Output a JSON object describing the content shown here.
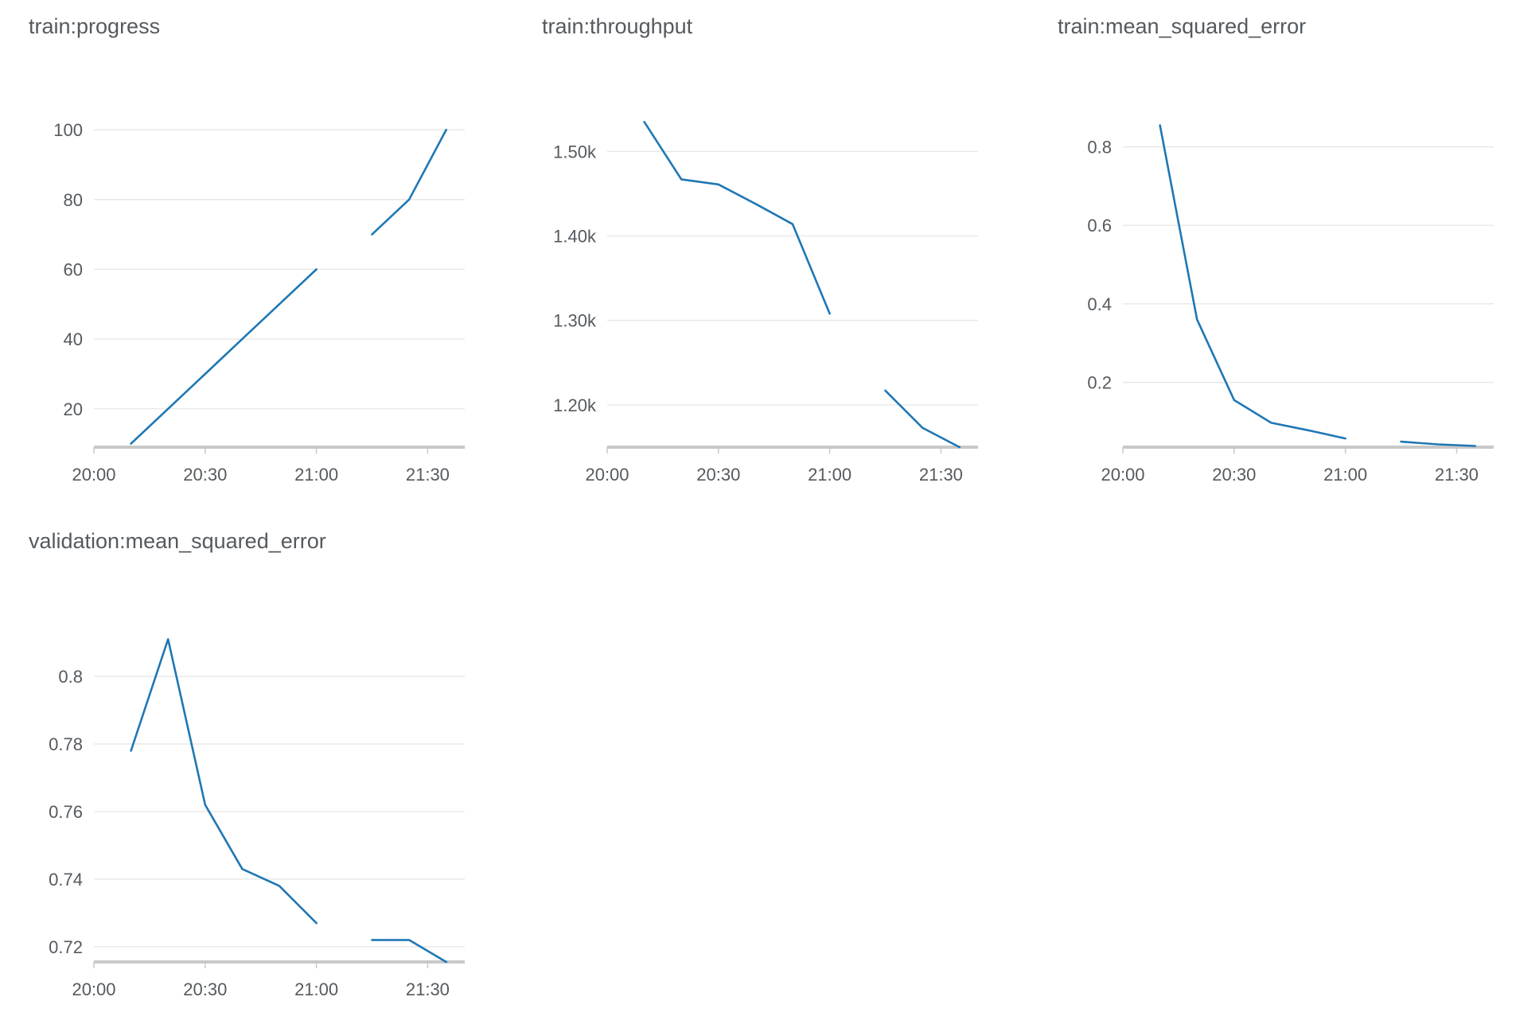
{
  "palette": {
    "series": "#1f77b4"
  },
  "chart_data": [
    {
      "type": "line",
      "title": "train:progress",
      "x_ticks": [
        "20:00",
        "20:30",
        "21:00",
        "21:30"
      ],
      "xlim": [
        "20:00",
        "21:40"
      ],
      "ylim": [
        9,
        103
      ],
      "y_ticks": [
        20,
        40,
        60,
        80,
        100
      ],
      "y_tick_labels": [
        "20",
        "40",
        "60",
        "80",
        "100"
      ],
      "grid": true,
      "series": [
        {
          "segments": [
            [
              {
                "x": "20:10",
                "y": 10
              },
              {
                "x": "20:20",
                "y": 20
              },
              {
                "x": "20:30",
                "y": 30
              },
              {
                "x": "20:40",
                "y": 40
              },
              {
                "x": "20:50",
                "y": 50
              },
              {
                "x": "21:00",
                "y": 60
              }
            ],
            [
              {
                "x": "21:15",
                "y": 70
              },
              {
                "x": "21:25",
                "y": 80
              },
              {
                "x": "21:35",
                "y": 100
              }
            ]
          ]
        }
      ]
    },
    {
      "type": "line",
      "title": "train:throughput",
      "x_ticks": [
        "20:00",
        "20:30",
        "21:00",
        "21:30"
      ],
      "xlim": [
        "20:00",
        "21:40"
      ],
      "ylim": [
        1150,
        1538
      ],
      "y_ticks": [
        1200,
        1300,
        1400,
        1500
      ],
      "y_tick_labels": [
        "1.20k",
        "1.30k",
        "1.40k",
        "1.50k"
      ],
      "grid": true,
      "series": [
        {
          "segments": [
            [
              {
                "x": "20:10",
                "y": 1535
              },
              {
                "x": "20:20",
                "y": 1467
              },
              {
                "x": "20:30",
                "y": 1461
              },
              {
                "x": "20:40",
                "y": 1438
              },
              {
                "x": "20:50",
                "y": 1414
              },
              {
                "x": "21:00",
                "y": 1308
              }
            ],
            [
              {
                "x": "21:15",
                "y": 1217
              },
              {
                "x": "21:25",
                "y": 1173
              },
              {
                "x": "21:35",
                "y": 1150
              }
            ]
          ]
        }
      ]
    },
    {
      "type": "line",
      "title": "train:mean_squared_error",
      "x_ticks": [
        "20:00",
        "20:30",
        "21:00",
        "21:30"
      ],
      "xlim": [
        "20:00",
        "21:40"
      ],
      "ylim": [
        0.035,
        0.87
      ],
      "y_ticks": [
        0.2,
        0.4,
        0.6,
        0.8
      ],
      "y_tick_labels": [
        "0.2",
        "0.4",
        "0.6",
        "0.8"
      ],
      "grid": true,
      "series": [
        {
          "segments": [
            [
              {
                "x": "20:10",
                "y": 0.855
              },
              {
                "x": "20:20",
                "y": 0.36
              },
              {
                "x": "20:30",
                "y": 0.155
              },
              {
                "x": "20:40",
                "y": 0.097
              },
              {
                "x": "20:50",
                "y": 0.078
              },
              {
                "x": "21:00",
                "y": 0.057
              }
            ],
            [
              {
                "x": "21:15",
                "y": 0.049
              },
              {
                "x": "21:25",
                "y": 0.042
              },
              {
                "x": "21:35",
                "y": 0.038
              }
            ]
          ]
        }
      ]
    },
    {
      "type": "line",
      "title": "validation:mean_squared_error",
      "x_ticks": [
        "20:00",
        "20:30",
        "21:00",
        "21:30"
      ],
      "xlim": [
        "20:00",
        "21:40"
      ],
      "ylim": [
        0.7155,
        0.8125
      ],
      "y_ticks": [
        0.72,
        0.74,
        0.76,
        0.78,
        0.8
      ],
      "y_tick_labels": [
        "0.72",
        "0.74",
        "0.76",
        "0.78",
        "0.8"
      ],
      "grid": true,
      "series": [
        {
          "segments": [
            [
              {
                "x": "20:10",
                "y": 0.778
              },
              {
                "x": "20:20",
                "y": 0.811
              },
              {
                "x": "20:30",
                "y": 0.762
              },
              {
                "x": "20:40",
                "y": 0.743
              },
              {
                "x": "20:50",
                "y": 0.738
              },
              {
                "x": "21:00",
                "y": 0.727
              }
            ],
            [
              {
                "x": "21:15",
                "y": 0.722
              },
              {
                "x": "21:25",
                "y": 0.722
              },
              {
                "x": "21:35",
                "y": 0.7155
              }
            ]
          ]
        }
      ]
    }
  ]
}
